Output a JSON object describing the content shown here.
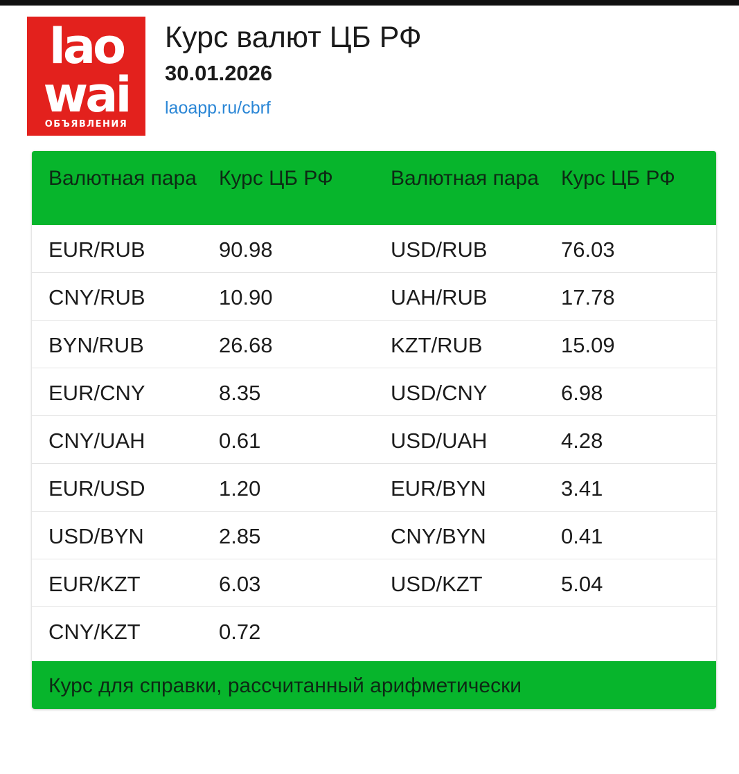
{
  "header": {
    "logo": {
      "line1": "lao",
      "line2": "wai",
      "sub": "ОБЪЯВЛЕНИЯ"
    },
    "title": "Курс валют ЦБ РФ",
    "date": "30.01.2026",
    "link": "laoapp.ru/cbrf"
  },
  "table": {
    "columns": [
      "Валютная пара",
      "Курс ЦБ РФ",
      "Валютная пара",
      "Курс ЦБ РФ"
    ],
    "rows": [
      [
        "EUR/RUB",
        "90.98",
        "USD/RUB",
        "76.03"
      ],
      [
        "CNY/RUB",
        "10.90",
        "UAH/RUB",
        "17.78"
      ],
      [
        "BYN/RUB",
        "26.68",
        "KZT/RUB",
        "15.09"
      ],
      [
        "EUR/CNY",
        "8.35",
        "USD/CNY",
        "6.98"
      ],
      [
        "CNY/UAH",
        "0.61",
        "USD/UAH",
        "4.28"
      ],
      [
        "EUR/USD",
        "1.20",
        "EUR/BYN",
        "3.41"
      ],
      [
        "USD/BYN",
        "2.85",
        "CNY/BYN",
        "0.41"
      ],
      [
        "EUR/KZT",
        "6.03",
        "USD/KZT",
        "5.04"
      ],
      [
        "CNY/KZT",
        "0.72",
        "",
        ""
      ]
    ],
    "footer": "Курс для справки, рассчитанный арифметически"
  },
  "colors": {
    "accent_green": "#07b52c",
    "logo_red": "#e3211d",
    "link_blue": "#2a86d6"
  }
}
